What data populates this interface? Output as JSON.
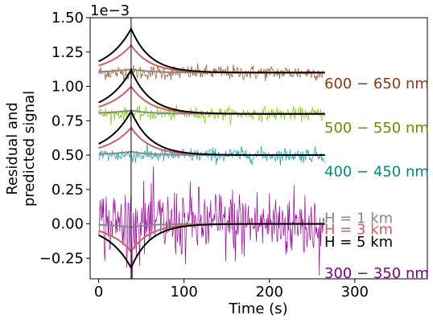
{
  "chart_data": {
    "type": "line",
    "xlabel": "Time (s)",
    "ylabel_lines": [
      "Residual and",
      "predicted signal"
    ],
    "offset_text": "1e−3",
    "scale_factor": 0.001,
    "xlim": [
      -10,
      385
    ],
    "ylim": [
      -0.4,
      1.5
    ],
    "xticks": [
      {
        "value": 0,
        "label": "0"
      },
      {
        "value": 100,
        "label": "100"
      },
      {
        "value": 200,
        "label": "200"
      },
      {
        "value": 300,
        "label": "300"
      }
    ],
    "yticks": [
      {
        "value": -0.25,
        "label": "−0.25"
      },
      {
        "value": 0.0,
        "label": "0.00"
      },
      {
        "value": 0.25,
        "label": "0.25"
      },
      {
        "value": 0.5,
        "label": "0.50"
      },
      {
        "value": 0.75,
        "label": "0.75"
      },
      {
        "value": 1.0,
        "label": "1.00"
      },
      {
        "value": 1.25,
        "label": "1.25"
      },
      {
        "value": 1.5,
        "label": "1.50"
      }
    ],
    "event_time": 38,
    "time_range": [
      0,
      265
    ],
    "bands": [
      {
        "label": "600 − 650 nm",
        "offset": 1.1,
        "noise_amp": 0.045,
        "color": "#a0521a",
        "label_color": "#8b3a10",
        "label_y": 1.02
      },
      {
        "label": "500 − 550 nm",
        "offset": 0.8,
        "noise_amp": 0.04,
        "color": "#7ccd00",
        "label_color": "#808000",
        "label_y": 0.7
      },
      {
        "label": "400 − 450 nm",
        "offset": 0.5,
        "noise_amp": 0.045,
        "color": "#0aa0b8",
        "label_color": "#008b80",
        "label_y": 0.38
      },
      {
        "label": "300 − 350 nm",
        "offset": 0.0,
        "noise_amp": 0.22,
        "color": "#a000a0",
        "label_color": "#800080",
        "label_y": -0.36
      }
    ],
    "models": [
      {
        "label": "H = 1 km",
        "color": "#888888",
        "peak": 0.025
      },
      {
        "label": "H = 3 km",
        "color": "#d06060",
        "peak": 0.2
      },
      {
        "label": "H = 5 km",
        "color": "#000000",
        "peak": 0.32
      }
    ],
    "bottom_band_sign": -1
  }
}
